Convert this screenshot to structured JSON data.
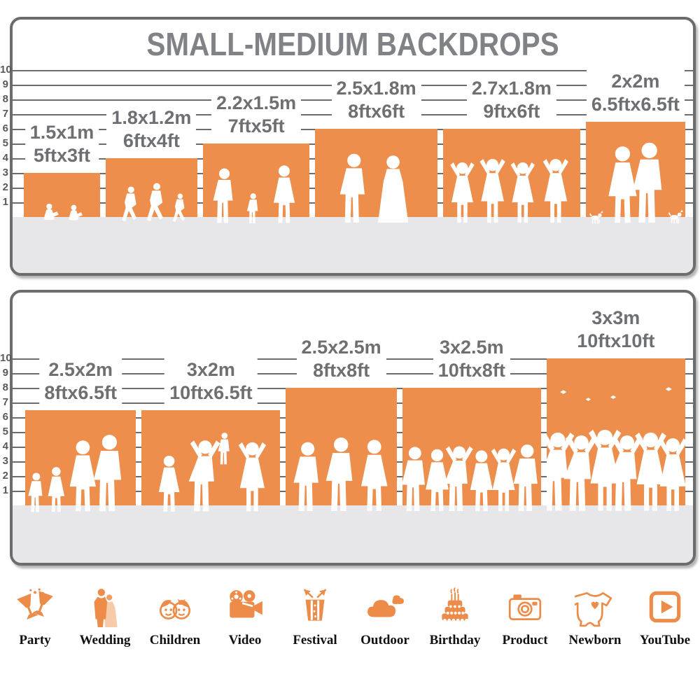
{
  "title": "SMALL-MEDIUM BACKDROPS",
  "colors": {
    "backdrop_orange": "#ED8E4C",
    "grid_gray": "#6B6C6E",
    "title_gray": "#808285",
    "label_gray": "#6E6F72",
    "floor_gray": "#E7E7E9",
    "icon_orange": "#EC8C48",
    "category_text": "#111111"
  },
  "axis": {
    "ticks": [
      10,
      9,
      8,
      7,
      6,
      5,
      4,
      3,
      2,
      1
    ],
    "unit": "ft"
  },
  "chart_data": {
    "type": "bar",
    "title": "SMALL-MEDIUM BACKDROPS",
    "ylabel": "feet",
    "ylim": [
      0,
      10
    ],
    "grid": true,
    "panels": [
      {
        "name": "panel-top",
        "items": [
          {
            "meters": "1.5x1m",
            "feet": "5ftx3ft",
            "width_ft": 5,
            "height_ft": 3
          },
          {
            "meters": "1.8x1.2m",
            "feet": "6ftx4ft",
            "width_ft": 6,
            "height_ft": 4
          },
          {
            "meters": "2.2x1.5m",
            "feet": "7ftx5ft",
            "width_ft": 7,
            "height_ft": 5
          },
          {
            "meters": "2.5x1.8m",
            "feet": "8ftx6ft",
            "width_ft": 8,
            "height_ft": 6
          },
          {
            "meters": "2.7x1.8m",
            "feet": "9ftx6ft",
            "width_ft": 9,
            "height_ft": 6
          },
          {
            "meters": "2x2m",
            "feet": "6.5ftx6.5ft",
            "width_ft": 6.5,
            "height_ft": 6.5
          }
        ]
      },
      {
        "name": "panel-bottom",
        "items": [
          {
            "meters": "2.5x2m",
            "feet": "8ftx6.5ft",
            "width_ft": 8,
            "height_ft": 6.5
          },
          {
            "meters": "3x2m",
            "feet": "10ftx6.5ft",
            "width_ft": 10,
            "height_ft": 6.5
          },
          {
            "meters": "2.5x2.5m",
            "feet": "8ftx8ft",
            "width_ft": 8,
            "height_ft": 8
          },
          {
            "meters": "3x2.5m",
            "feet": "10ftx8ft",
            "width_ft": 10,
            "height_ft": 8
          },
          {
            "meters": "3x3m",
            "feet": "10ftx10ft",
            "width_ft": 10,
            "height_ft": 10
          }
        ]
      }
    ]
  },
  "scenes": [
    [
      {
        "name": "children-reading",
        "figures": [
          {
            "k": "sit",
            "x": 0.36,
            "h": 0.66
          },
          {
            "k": "sit",
            "x": 0.68,
            "h": 0.62
          }
        ]
      },
      {
        "name": "children-running",
        "figures": [
          {
            "k": "run",
            "x": 0.26,
            "h": 0.64
          },
          {
            "k": "run",
            "x": 0.54,
            "h": 0.7
          },
          {
            "k": "run",
            "x": 0.8,
            "h": 0.52
          }
        ]
      },
      {
        "name": "family-walking",
        "figures": [
          {
            "k": "man",
            "x": 0.2,
            "h": 0.76
          },
          {
            "k": "man",
            "x": 0.47,
            "h": 0.42
          },
          {
            "k": "woman",
            "x": 0.76,
            "h": 0.8
          }
        ]
      },
      {
        "name": "wedding-couple",
        "figures": [
          {
            "k": "man",
            "x": 0.32,
            "h": 0.8
          },
          {
            "k": "bride",
            "x": 0.64,
            "h": 0.78
          }
        ]
      },
      {
        "name": "dancing-girls",
        "figures": [
          {
            "k": "cheerf",
            "x": 0.14,
            "h": 0.72
          },
          {
            "k": "cheerf",
            "x": 0.36,
            "h": 0.76
          },
          {
            "k": "cheerf",
            "x": 0.58,
            "h": 0.72
          },
          {
            "k": "cheerf",
            "x": 0.82,
            "h": 0.76
          }
        ]
      },
      {
        "name": "couple-with-dogs",
        "figures": [
          {
            "k": "dog",
            "x": 0.1,
            "h": 0.28
          },
          {
            "k": "woman",
            "x": 0.37,
            "h": 0.82
          },
          {
            "k": "man",
            "x": 0.64,
            "h": 0.86
          },
          {
            "k": "dog",
            "x": 0.9,
            "h": 0.3
          }
        ]
      }
    ],
    [
      {
        "name": "family-group",
        "figures": [
          {
            "k": "man",
            "x": 0.1,
            "h": 0.42
          },
          {
            "k": "woman",
            "x": 0.28,
            "h": 0.48
          },
          {
            "k": "woman",
            "x": 0.52,
            "h": 0.76
          },
          {
            "k": "man",
            "x": 0.76,
            "h": 0.82
          }
        ]
      },
      {
        "name": "family-lifting-child",
        "figures": [
          {
            "k": "woman",
            "x": 0.2,
            "h": 0.6
          },
          {
            "k": "cheer",
            "x": 0.46,
            "h": 0.78
          },
          {
            "k": "man",
            "x": 0.6,
            "h": 0.34,
            "dy": 0.5
          },
          {
            "k": "cheerf",
            "x": 0.8,
            "h": 0.76
          }
        ]
      },
      {
        "name": "standing-men",
        "figures": [
          {
            "k": "man",
            "x": 0.2,
            "h": 0.6
          },
          {
            "k": "man",
            "x": 0.5,
            "h": 0.64
          },
          {
            "k": "woman",
            "x": 0.8,
            "h": 0.62
          }
        ]
      },
      {
        "name": "friends-group",
        "figures": [
          {
            "k": "man",
            "x": 0.09,
            "h": 0.56
          },
          {
            "k": "woman",
            "x": 0.25,
            "h": 0.54
          },
          {
            "k": "cheer",
            "x": 0.41,
            "h": 0.58
          },
          {
            "k": "woman",
            "x": 0.57,
            "h": 0.53
          },
          {
            "k": "cheerf",
            "x": 0.73,
            "h": 0.56
          },
          {
            "k": "man",
            "x": 0.9,
            "h": 0.58
          }
        ]
      },
      {
        "name": "graduation-crowd",
        "figures": [
          {
            "k": "cap",
            "x": 0.12,
            "h": 0.12,
            "dy": 0.76
          },
          {
            "k": "cap",
            "x": 0.3,
            "h": 0.1,
            "dy": 0.72
          },
          {
            "k": "cap",
            "x": 0.48,
            "h": 0.11,
            "dy": 0.73
          },
          {
            "k": "cap",
            "x": 0.88,
            "h": 0.12,
            "dy": 0.78
          },
          {
            "k": "cheer",
            "x": 0.08,
            "h": 0.56
          },
          {
            "k": "cheer",
            "x": 0.25,
            "h": 0.54
          },
          {
            "k": "cheerf",
            "x": 0.42,
            "h": 0.58
          },
          {
            "k": "cheer",
            "x": 0.58,
            "h": 0.54
          },
          {
            "k": "cheerf",
            "x": 0.75,
            "h": 0.56
          },
          {
            "k": "cheerf",
            "x": 0.91,
            "h": 0.52
          }
        ]
      }
    ]
  ],
  "categories": [
    {
      "label": "Party",
      "icon": "party-icon"
    },
    {
      "label": "Wedding",
      "icon": "wedding-icon"
    },
    {
      "label": "Children",
      "icon": "children-icon"
    },
    {
      "label": "Video",
      "icon": "video-icon"
    },
    {
      "label": "Festival",
      "icon": "festival-icon"
    },
    {
      "label": "Outdoor",
      "icon": "outdoor-icon"
    },
    {
      "label": "Birthday",
      "icon": "birthday-icon"
    },
    {
      "label": "Product",
      "icon": "product-icon"
    },
    {
      "label": "Newborn",
      "icon": "newborn-icon"
    },
    {
      "label": "YouTube",
      "icon": "youtube-icon"
    }
  ]
}
